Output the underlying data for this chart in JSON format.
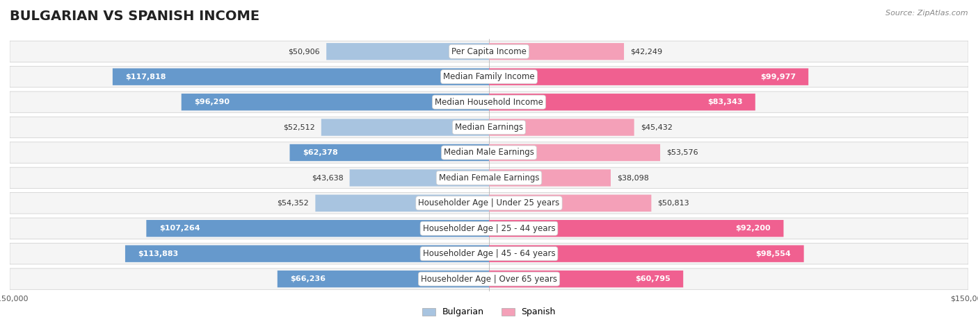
{
  "title": "BULGARIAN VS SPANISH INCOME",
  "source": "Source: ZipAtlas.com",
  "categories": [
    "Per Capita Income",
    "Median Family Income",
    "Median Household Income",
    "Median Earnings",
    "Median Male Earnings",
    "Median Female Earnings",
    "Householder Age | Under 25 years",
    "Householder Age | 25 - 44 years",
    "Householder Age | 45 - 64 years",
    "Householder Age | Over 65 years"
  ],
  "bulgarian_values": [
    50906,
    117818,
    96290,
    52512,
    62378,
    43638,
    54352,
    107264,
    113883,
    66236
  ],
  "spanish_values": [
    42249,
    99977,
    83343,
    45432,
    53576,
    38098,
    50813,
    92200,
    98554,
    60795
  ],
  "bulgarian_color_light": "#a8c4e0",
  "bulgarian_color_dark": "#6699cc",
  "spanish_color_light": "#f4a0b8",
  "spanish_color_dark": "#f06090",
  "max_value": 150000,
  "background_color": "#ffffff",
  "row_bg_color": "#f0f0f0",
  "label_bg_color": "#ffffff",
  "title_fontsize": 14,
  "label_fontsize": 8.5,
  "value_fontsize": 8,
  "legend_fontsize": 9,
  "source_fontsize": 8
}
